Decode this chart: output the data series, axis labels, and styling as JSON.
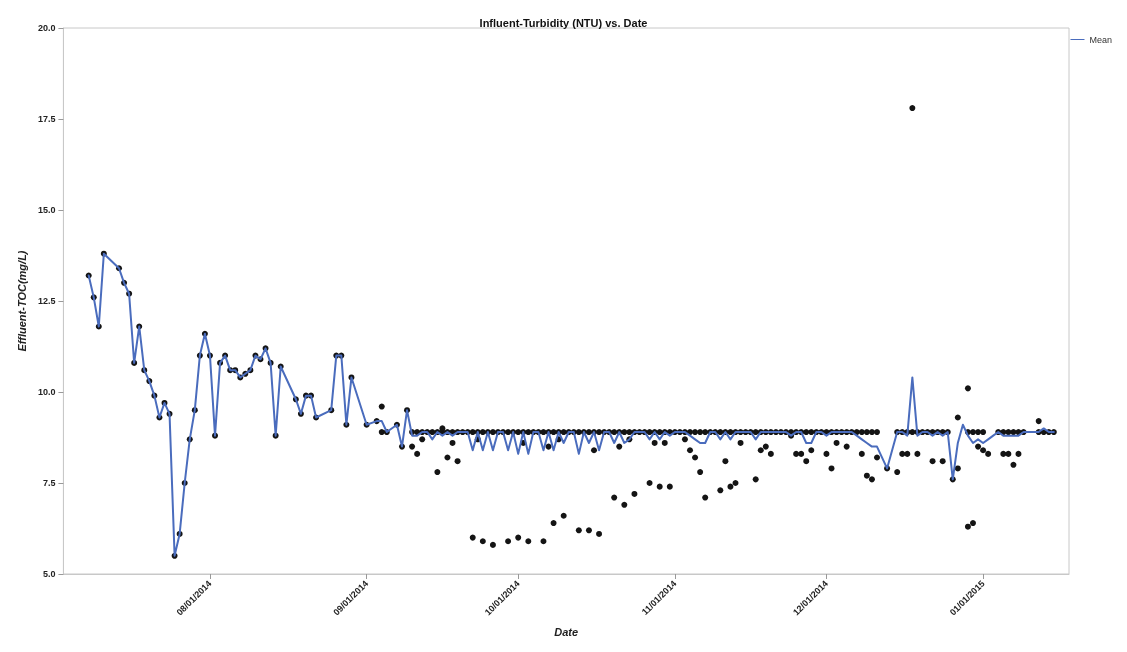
{
  "chart_data": {
    "type": "line",
    "title": "Influent-Turbidity (NTU) vs. Date",
    "xlabel": "Date",
    "ylabel": "Effluent-TOC(mg/L)",
    "xlim": [
      "2014-07-03",
      "2015-01-18"
    ],
    "xticks": [
      {
        "value": "2014-08-01",
        "label": "08/01/2014"
      },
      {
        "value": "2014-09-01",
        "label": "09/01/2014"
      },
      {
        "value": "2014-10-01",
        "label": "10/01/2014"
      },
      {
        "value": "2014-11-01",
        "label": "11/01/2014"
      },
      {
        "value": "2014-12-01",
        "label": "12/01/2014"
      },
      {
        "value": "2015-01-01",
        "label": "01/01/2015"
      }
    ],
    "ylim": [
      5,
      20
    ],
    "yticks": [
      {
        "value": 5,
        "label": "5.0"
      },
      {
        "value": 7.5,
        "label": "7.5"
      },
      {
        "value": 10,
        "label": "10.0"
      },
      {
        "value": 12.5,
        "label": "12.5"
      },
      {
        "value": 15,
        "label": "15.0"
      },
      {
        "value": 17.5,
        "label": "17.5"
      },
      {
        "value": 20,
        "label": "20.0"
      }
    ],
    "grid": false,
    "legend": "top right",
    "series": [
      {
        "type": "scatter",
        "color": "#141414",
        "marker": "circle",
        "x": [
          "2014-07-08",
          "2014-07-09",
          "2014-07-10",
          "2014-07-11",
          "2014-07-14",
          "2014-07-15",
          "2014-07-16",
          "2014-07-17",
          "2014-07-18",
          "2014-07-19",
          "2014-07-20",
          "2014-07-21",
          "2014-07-22",
          "2014-07-23",
          "2014-07-24",
          "2014-07-25",
          "2014-07-26",
          "2014-07-27",
          "2014-07-28",
          "2014-07-29",
          "2014-07-30",
          "2014-07-31",
          "2014-08-01",
          "2014-08-02",
          "2014-08-03",
          "2014-08-04",
          "2014-08-05",
          "2014-08-06",
          "2014-08-07",
          "2014-08-08",
          "2014-08-09",
          "2014-08-10",
          "2014-08-11",
          "2014-08-12",
          "2014-08-13",
          "2014-08-14",
          "2014-08-15",
          "2014-08-18",
          "2014-08-19",
          "2014-08-20",
          "2014-08-21",
          "2014-08-22",
          "2014-08-25",
          "2014-08-26",
          "2014-08-27",
          "2014-08-28",
          "2014-08-29",
          "2014-09-01",
          "2014-09-03",
          "2014-09-04",
          "2014-09-04",
          "2014-09-05",
          "2014-09-07",
          "2014-09-08",
          "2014-09-09",
          "2014-09-10",
          "2014-09-11",
          "2014-09-12",
          "2014-09-13",
          "2014-09-14",
          "2014-09-15",
          "2014-09-16",
          "2014-09-17",
          "2014-09-18",
          "2014-09-19",
          "2014-09-20",
          "2014-09-21",
          "2014-09-22",
          "2014-09-23",
          "2014-09-24",
          "2014-09-25",
          "2014-09-26",
          "2014-09-27",
          "2014-09-28",
          "2014-09-29",
          "2014-09-30",
          "2014-10-01",
          "2014-10-02",
          "2014-10-03",
          "2014-10-04",
          "2014-10-05",
          "2014-10-06",
          "2014-10-07",
          "2014-10-08",
          "2014-10-09",
          "2014-10-10",
          "2014-10-11",
          "2014-10-12",
          "2014-10-13",
          "2014-10-14",
          "2014-10-15",
          "2014-10-16",
          "2014-10-17",
          "2014-10-18",
          "2014-10-19",
          "2014-10-20",
          "2014-10-21",
          "2014-10-22",
          "2014-10-23",
          "2014-10-24",
          "2014-10-25",
          "2014-10-26",
          "2014-10-27",
          "2014-10-28",
          "2014-10-29",
          "2014-10-30",
          "2014-10-31",
          "2014-11-01",
          "2014-11-02",
          "2014-11-03",
          "2014-11-04",
          "2014-11-05",
          "2014-11-06",
          "2014-11-07",
          "2014-11-08",
          "2014-11-09",
          "2014-11-10",
          "2014-11-11",
          "2014-11-12",
          "2014-11-13",
          "2014-11-14",
          "2014-11-15",
          "2014-11-16",
          "2014-11-17",
          "2014-11-18",
          "2014-11-19",
          "2014-11-20",
          "2014-11-21",
          "2014-11-22",
          "2014-11-23",
          "2014-11-24",
          "2014-11-25",
          "2014-11-26",
          "2014-11-27",
          "2014-11-28",
          "2014-11-29",
          "2014-11-30",
          "2014-12-01",
          "2014-12-02",
          "2014-12-03",
          "2014-12-04",
          "2014-12-05",
          "2014-12-06",
          "2014-12-07",
          "2014-12-08",
          "2014-12-09",
          "2014-12-10",
          "2014-12-11",
          "2014-12-15",
          "2014-12-16",
          "2014-12-17",
          "2014-12-18",
          "2014-12-19",
          "2014-12-20",
          "2014-12-21",
          "2014-12-22",
          "2014-12-23",
          "2014-12-24",
          "2014-12-25",
          "2014-12-29",
          "2014-12-30",
          "2014-12-31",
          "2015-01-01",
          "2015-01-04",
          "2015-01-05",
          "2015-01-06",
          "2015-01-07",
          "2015-01-08",
          "2015-01-09",
          "2015-01-12",
          "2015-01-13",
          "2015-01-14",
          "2015-01-15",
          "2014-09-10",
          "2014-09-11",
          "2014-09-12",
          "2014-09-15",
          "2014-09-16",
          "2014-09-17",
          "2014-09-18",
          "2014-09-19",
          "2014-09-22",
          "2014-09-23",
          "2014-09-24",
          "2014-09-26",
          "2014-09-29",
          "2014-10-01",
          "2014-10-02",
          "2014-10-03",
          "2014-10-06",
          "2014-10-07",
          "2014-10-08",
          "2014-10-09",
          "2014-10-10",
          "2014-10-13",
          "2014-10-15",
          "2014-10-16",
          "2014-10-17",
          "2014-10-20",
          "2014-10-21",
          "2014-10-22",
          "2014-10-23",
          "2014-10-24",
          "2014-10-27",
          "2014-10-28",
          "2014-10-29",
          "2014-10-30",
          "2014-10-31",
          "2014-11-03",
          "2014-11-04",
          "2014-11-05",
          "2014-11-06",
          "2014-11-07",
          "2014-11-10",
          "2014-11-11",
          "2014-11-12",
          "2014-11-13",
          "2014-11-14",
          "2014-11-17",
          "2014-11-18",
          "2014-11-19",
          "2014-11-20",
          "2014-11-24",
          "2014-11-25",
          "2014-11-26",
          "2014-11-27",
          "2014-11-28",
          "2014-12-01",
          "2014-12-02",
          "2014-12-03",
          "2014-12-05",
          "2014-12-08",
          "2014-12-09",
          "2014-12-10",
          "2014-12-11",
          "2014-12-13",
          "2014-12-15",
          "2014-12-16",
          "2014-12-17",
          "2014-12-18",
          "2014-12-19",
          "2014-12-22",
          "2014-12-24",
          "2014-12-26",
          "2014-12-27",
          "2014-12-27",
          "2014-12-29",
          "2014-12-29",
          "2014-12-30",
          "2014-12-31",
          "2015-01-01",
          "2015-01-02",
          "2015-01-05",
          "2015-01-06",
          "2015-01-07",
          "2015-01-08",
          "2015-01-12"
        ],
        "values": [
          13.2,
          12.6,
          11.8,
          13.8,
          13.4,
          13.0,
          12.7,
          10.8,
          11.8,
          10.6,
          10.3,
          9.9,
          9.3,
          9.7,
          9.4,
          5.5,
          6.1,
          7.5,
          8.7,
          9.5,
          11.0,
          11.6,
          11.0,
          8.8,
          10.8,
          11.0,
          10.6,
          10.6,
          10.4,
          10.5,
          10.6,
          11.0,
          10.9,
          11.2,
          10.8,
          8.8,
          10.7,
          9.8,
          9.4,
          9.9,
          9.9,
          9.3,
          9.5,
          11.0,
          11.0,
          9.1,
          10.4,
          9.1,
          9.2,
          9.6,
          8.9,
          8.9,
          9.1,
          8.5,
          9.5,
          8.9,
          8.9,
          8.9,
          8.9,
          8.9,
          8.9,
          8.9,
          8.9,
          8.9,
          8.9,
          8.9,
          8.9,
          8.9,
          8.9,
          8.9,
          8.9,
          8.9,
          8.9,
          8.9,
          8.9,
          8.9,
          8.9,
          8.9,
          8.9,
          8.9,
          8.9,
          8.9,
          8.9,
          8.9,
          8.9,
          8.9,
          8.9,
          8.9,
          8.9,
          8.9,
          8.9,
          8.9,
          8.9,
          8.9,
          8.9,
          8.9,
          8.9,
          8.9,
          8.9,
          8.9,
          8.9,
          8.9,
          8.9,
          8.9,
          8.9,
          8.9,
          8.9,
          8.9,
          8.9,
          8.9,
          8.9,
          8.9,
          8.9,
          8.9,
          8.9,
          8.9,
          8.9,
          8.9,
          8.9,
          8.9,
          8.9,
          8.9,
          8.9,
          8.9,
          8.9,
          8.9,
          8.9,
          8.9,
          8.9,
          8.9,
          8.9,
          8.9,
          8.9,
          8.9,
          8.9,
          8.9,
          8.9,
          8.9,
          8.9,
          8.9,
          8.9,
          8.9,
          8.9,
          8.9,
          8.9,
          8.9,
          8.9,
          8.9,
          8.9,
          8.9,
          8.9,
          8.9,
          8.9,
          8.9,
          8.9,
          8.9,
          8.9,
          8.9,
          8.9,
          8.9,
          8.9,
          8.9,
          8.9,
          8.9,
          8.9,
          8.9,
          8.9,
          8.9,
          8.9,
          8.9,
          8.9,
          8.9,
          8.9,
          8.5,
          8.3,
          8.7,
          7.8,
          9.0,
          8.2,
          8.6,
          8.1,
          6.0,
          8.7,
          5.9,
          5.8,
          5.9,
          6.0,
          8.6,
          5.9,
          5.9,
          8.5,
          6.4,
          8.7,
          6.6,
          6.2,
          6.2,
          8.4,
          6.1,
          7.1,
          8.5,
          6.9,
          8.7,
          7.2,
          7.5,
          8.6,
          7.4,
          8.6,
          7.4,
          8.7,
          8.4,
          8.2,
          7.8,
          7.1,
          7.3,
          8.1,
          7.4,
          7.5,
          8.6,
          7.6,
          8.4,
          8.5,
          8.3,
          8.8,
          8.3,
          8.3,
          8.1,
          8.4,
          8.3,
          7.9,
          8.6,
          8.5,
          8.3,
          7.7,
          7.6,
          8.2,
          7.9,
          7.8,
          8.3,
          8.3,
          17.8,
          8.3,
          8.1,
          8.1,
          7.6,
          9.3,
          7.9,
          10.1,
          6.3,
          6.4,
          8.5,
          8.4,
          8.3,
          8.3,
          8.3,
          8.0,
          8.3,
          9.2
        ]
      },
      {
        "type": "line",
        "name": "Mean",
        "color": "#4a6cbd",
        "marker": "none",
        "line_style": "solid",
        "x": [
          "2014-07-08",
          "2014-07-09",
          "2014-07-10",
          "2014-07-11",
          "2014-07-14",
          "2014-07-15",
          "2014-07-16",
          "2014-07-17",
          "2014-07-18",
          "2014-07-19",
          "2014-07-20",
          "2014-07-21",
          "2014-07-22",
          "2014-07-23",
          "2014-07-24",
          "2014-07-25",
          "2014-07-26",
          "2014-07-27",
          "2014-07-28",
          "2014-07-29",
          "2014-07-30",
          "2014-07-31",
          "2014-08-01",
          "2014-08-02",
          "2014-08-03",
          "2014-08-04",
          "2014-08-05",
          "2014-08-06",
          "2014-08-07",
          "2014-08-08",
          "2014-08-09",
          "2014-08-10",
          "2014-08-11",
          "2014-08-12",
          "2014-08-13",
          "2014-08-14",
          "2014-08-15",
          "2014-08-18",
          "2014-08-19",
          "2014-08-20",
          "2014-08-21",
          "2014-08-22",
          "2014-08-25",
          "2014-08-26",
          "2014-08-27",
          "2014-08-28",
          "2014-08-29",
          "2014-09-01",
          "2014-09-03",
          "2014-09-04",
          "2014-09-05",
          "2014-09-07",
          "2014-09-08",
          "2014-09-09",
          "2014-09-10",
          "2014-09-11",
          "2014-09-12",
          "2014-09-13",
          "2014-09-14",
          "2014-09-15",
          "2014-09-16",
          "2014-09-17",
          "2014-09-18",
          "2014-09-19",
          "2014-09-20",
          "2014-09-21",
          "2014-09-22",
          "2014-09-23",
          "2014-09-24",
          "2014-09-25",
          "2014-09-26",
          "2014-09-27",
          "2014-09-28",
          "2014-09-29",
          "2014-09-30",
          "2014-10-01",
          "2014-10-02",
          "2014-10-03",
          "2014-10-04",
          "2014-10-05",
          "2014-10-06",
          "2014-10-07",
          "2014-10-08",
          "2014-10-09",
          "2014-10-10",
          "2014-10-11",
          "2014-10-12",
          "2014-10-13",
          "2014-10-14",
          "2014-10-15",
          "2014-10-16",
          "2014-10-17",
          "2014-10-18",
          "2014-10-19",
          "2014-10-20",
          "2014-10-21",
          "2014-10-22",
          "2014-10-23",
          "2014-10-24",
          "2014-10-25",
          "2014-10-26",
          "2014-10-27",
          "2014-10-28",
          "2014-10-29",
          "2014-10-30",
          "2014-10-31",
          "2014-11-01",
          "2014-11-02",
          "2014-11-03",
          "2014-11-04",
          "2014-11-05",
          "2014-11-06",
          "2014-11-07",
          "2014-11-08",
          "2014-11-09",
          "2014-11-10",
          "2014-11-11",
          "2014-11-12",
          "2014-11-13",
          "2014-11-14",
          "2014-11-15",
          "2014-11-16",
          "2014-11-17",
          "2014-11-18",
          "2014-11-19",
          "2014-11-20",
          "2014-11-21",
          "2014-11-22",
          "2014-11-23",
          "2014-11-24",
          "2014-11-25",
          "2014-11-26",
          "2014-11-27",
          "2014-11-28",
          "2014-11-29",
          "2014-11-30",
          "2014-12-01",
          "2014-12-02",
          "2014-12-03",
          "2014-12-04",
          "2014-12-05",
          "2014-12-06",
          "2014-12-07",
          "2014-12-08",
          "2014-12-09",
          "2014-12-10",
          "2014-12-11",
          "2014-12-13",
          "2014-12-15",
          "2014-12-16",
          "2014-12-17",
          "2014-12-18",
          "2014-12-19",
          "2014-12-20",
          "2014-12-21",
          "2014-12-22",
          "2014-12-23",
          "2014-12-24",
          "2014-12-25",
          "2014-12-26",
          "2014-12-27",
          "2014-12-28",
          "2014-12-29",
          "2014-12-30",
          "2014-12-31",
          "2015-01-01",
          "2015-01-02",
          "2015-01-03",
          "2015-01-04",
          "2015-01-05",
          "2015-01-06",
          "2015-01-07",
          "2015-01-08",
          "2015-01-09",
          "2015-01-12",
          "2015-01-13",
          "2015-01-14",
          "2015-01-15"
        ],
        "values": [
          13.2,
          12.6,
          11.8,
          13.8,
          13.4,
          13.0,
          12.7,
          10.8,
          11.8,
          10.6,
          10.3,
          9.9,
          9.3,
          9.7,
          9.4,
          5.5,
          6.1,
          7.5,
          8.7,
          9.5,
          11.0,
          11.6,
          11.0,
          8.8,
          10.8,
          11.0,
          10.6,
          10.6,
          10.4,
          10.5,
          10.6,
          11.0,
          10.9,
          11.2,
          10.8,
          8.8,
          10.7,
          9.8,
          9.4,
          9.9,
          9.9,
          9.3,
          9.5,
          11.0,
          11.0,
          9.1,
          10.4,
          9.1,
          9.2,
          9.2,
          8.9,
          9.1,
          8.5,
          9.5,
          8.8,
          8.8,
          8.9,
          8.9,
          8.7,
          8.9,
          8.8,
          8.9,
          8.8,
          8.9,
          8.9,
          8.9,
          8.4,
          8.9,
          8.4,
          8.9,
          8.4,
          8.9,
          8.9,
          8.4,
          8.9,
          8.3,
          8.9,
          8.3,
          8.9,
          8.9,
          8.4,
          8.9,
          8.4,
          8.9,
          8.6,
          8.9,
          8.9,
          8.3,
          8.9,
          8.6,
          8.9,
          8.4,
          8.9,
          8.9,
          8.6,
          8.9,
          8.6,
          8.7,
          8.9,
          8.9,
          8.9,
          8.7,
          8.9,
          8.7,
          8.9,
          8.8,
          8.9,
          8.9,
          8.9,
          8.8,
          8.7,
          8.6,
          8.6,
          8.9,
          8.9,
          8.7,
          8.9,
          8.7,
          8.9,
          8.9,
          8.9,
          8.9,
          8.7,
          8.9,
          8.9,
          8.9,
          8.9,
          8.9,
          8.9,
          8.8,
          8.9,
          8.9,
          8.6,
          8.6,
          8.9,
          8.9,
          8.8,
          8.9,
          8.9,
          8.9,
          8.9,
          8.9,
          8.8,
          8.7,
          8.6,
          8.5,
          8.5,
          7.9,
          8.9,
          8.9,
          8.8,
          10.4,
          8.8,
          8.9,
          8.9,
          8.8,
          8.9,
          8.8,
          8.9,
          7.6,
          8.6,
          9.1,
          8.8,
          8.6,
          8.7,
          8.6,
          8.7,
          8.8,
          8.9,
          8.8,
          8.8,
          8.8,
          8.8,
          8.9,
          8.9,
          9.0,
          8.9,
          8.9
        ]
      }
    ]
  }
}
